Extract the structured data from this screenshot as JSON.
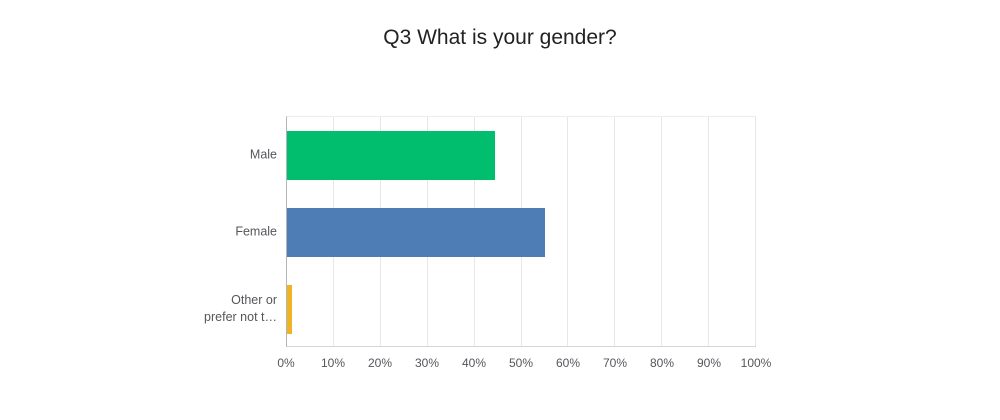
{
  "title": "Q3 What is your gender?",
  "colors": {
    "title_text": "#222222",
    "label_text": "#54565a",
    "axis_line": "#b2b6b9",
    "baseline": "#d4d6d8",
    "gridline": "#e8e8e8",
    "background": "#ffffff"
  },
  "chart_data": {
    "type": "bar",
    "orientation": "horizontal",
    "title": "Q3 What is your gender?",
    "categories": [
      "Male",
      "Female",
      "Other or\nprefer not t…"
    ],
    "values": [
      44.3,
      55.0,
      1.0
    ],
    "bar_colors": [
      "#00be6e",
      "#4e7cb5",
      "#f0b323"
    ],
    "xlabel": "",
    "ylabel": "",
    "xlim": [
      0,
      100
    ],
    "x_ticks": [
      "0%",
      "10%",
      "20%",
      "30%",
      "40%",
      "50%",
      "60%",
      "70%",
      "80%",
      "90%",
      "100%"
    ],
    "grid": true,
    "legend": false
  }
}
